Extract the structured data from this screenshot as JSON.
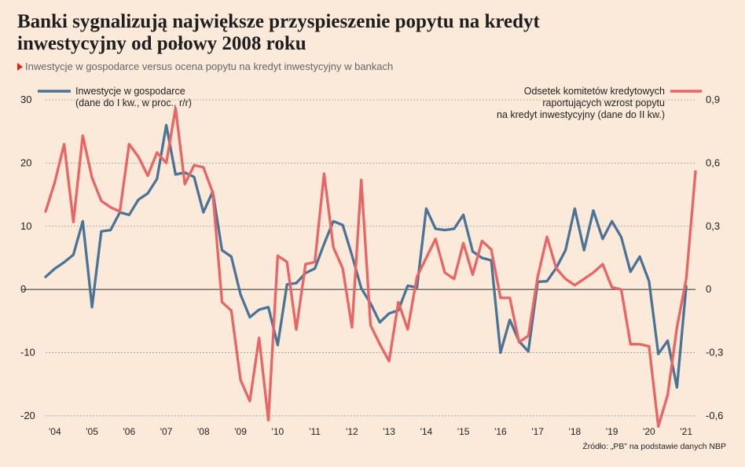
{
  "header": {
    "title": "Banki sygnalizują największe przyspieszenie popytu na kredyt inwestycyjny od połowy 2008 roku",
    "subtitle": "Inwestycje w gospodarce versus ocena popytu na kredyt inwestycyjny  w bankach"
  },
  "footer": {
    "source": "Źródło: „PB” na podstawie danych NBP"
  },
  "colors": {
    "investment": "#4b7396",
    "credit": "#ea6464",
    "zero_line": "#444444",
    "grid": "#9a9a9a"
  },
  "chart_data": {
    "type": "line",
    "x_tick_labels": [
      "'04",
      "'05",
      "'06",
      "'07",
      "'08",
      "'09",
      "'10",
      "'11",
      "'12",
      "'13",
      "'14",
      "'15",
      "'16",
      "'17",
      "'18",
      "'19",
      "'20",
      "'21"
    ],
    "x_range": [
      2003.875,
      2021.375
    ],
    "left_axis": {
      "ticks": [
        "-20",
        "-10",
        "0",
        "10",
        "20",
        "30"
      ],
      "range": [
        -21,
        30
      ]
    },
    "right_axis": {
      "ticks": [
        "-0,6",
        "-0,3",
        "0",
        "0,3",
        "0,6",
        "0,9"
      ],
      "range": [
        -0.63,
        0.9
      ]
    },
    "grid": "dashed horizontal",
    "series": [
      {
        "name": "Inwestycje w gospodarce (dane do I kw., w proc., r/r)",
        "legend_lines": [
          "Inwestycje w gospodarce",
          "(dane do I kw., w proc., r/r)"
        ],
        "axis": "left",
        "x": [
          2003.875,
          2004.125,
          2004.375,
          2004.625,
          2004.875,
          2005.125,
          2005.375,
          2005.625,
          2005.875,
          2006.125,
          2006.375,
          2006.625,
          2006.875,
          2007.125,
          2007.375,
          2007.625,
          2007.875,
          2008.125,
          2008.375,
          2008.625,
          2008.875,
          2009.125,
          2009.375,
          2009.625,
          2009.875,
          2010.125,
          2010.375,
          2010.625,
          2010.875,
          2011.125,
          2011.375,
          2011.625,
          2011.875,
          2012.125,
          2012.375,
          2012.625,
          2012.875,
          2013.125,
          2013.375,
          2013.625,
          2013.875,
          2014.125,
          2014.375,
          2014.625,
          2014.875,
          2015.125,
          2015.375,
          2015.625,
          2015.875,
          2016.125,
          2016.375,
          2016.625,
          2016.875,
          2017.125,
          2017.375,
          2017.625,
          2017.875,
          2018.125,
          2018.375,
          2018.625,
          2018.875,
          2019.125,
          2019.375,
          2019.625,
          2019.875,
          2020.125,
          2020.375,
          2020.625,
          2020.875,
          2021.125
        ],
        "y": [
          2,
          3.3,
          4.3,
          5.5,
          10.8,
          -2.8,
          9.2,
          9.4,
          12.2,
          11.8,
          14.2,
          15.2,
          17.5,
          26,
          18.2,
          18.5,
          17.8,
          12.2,
          15.5,
          6.2,
          5.2,
          -0.8,
          -4.4,
          -3.2,
          -2.8,
          -8.8,
          0.8,
          1,
          2.6,
          3.3,
          7.2,
          10.8,
          10.2,
          5.4,
          0.2,
          -2.2,
          -5.2,
          -3.8,
          -3.3,
          0.6,
          0.3,
          12.8,
          9.6,
          9.4,
          9.6,
          11.8,
          6,
          5,
          4.6,
          -10,
          -4.8,
          -8.2,
          -9.8,
          1.2,
          1.3,
          3.4,
          6.2,
          12.8,
          6.2,
          12.5,
          8,
          10.8,
          8.3,
          2.8,
          5.2,
          1.3,
          -10.2,
          -8.1,
          -15.5,
          0.5
        ]
      },
      {
        "name": "Odsetek komitetów kredytowych raportujących wzrost popytu na kredyt inwestycyjny (dane do II kw.)",
        "legend_lines": [
          "Odsetek komitetów kredytowych",
          "raportujących wzrost popytu",
          "na kredyt inwestycyjny (dane do II kw.)"
        ],
        "axis": "right",
        "x": [
          2003.875,
          2004.125,
          2004.375,
          2004.625,
          2004.875,
          2005.125,
          2005.375,
          2005.625,
          2005.875,
          2006.125,
          2006.375,
          2006.625,
          2006.875,
          2007.125,
          2007.375,
          2007.625,
          2007.875,
          2008.125,
          2008.375,
          2008.625,
          2008.875,
          2009.125,
          2009.375,
          2009.625,
          2009.875,
          2010.125,
          2010.375,
          2010.625,
          2010.875,
          2011.125,
          2011.375,
          2011.625,
          2011.875,
          2012.125,
          2012.375,
          2012.625,
          2012.875,
          2013.125,
          2013.375,
          2013.625,
          2013.875,
          2014.125,
          2014.375,
          2014.625,
          2014.875,
          2015.125,
          2015.375,
          2015.625,
          2015.875,
          2016.125,
          2016.375,
          2016.625,
          2016.875,
          2017.125,
          2017.375,
          2017.625,
          2017.875,
          2018.125,
          2018.375,
          2018.625,
          2018.875,
          2019.125,
          2019.375,
          2019.625,
          2019.875,
          2020.125,
          2020.375,
          2020.625,
          2020.875,
          2021.125,
          2021.375
        ],
        "y": [
          0.37,
          0.51,
          0.69,
          0.32,
          0.73,
          0.53,
          0.42,
          0.39,
          0.37,
          0.69,
          0.63,
          0.54,
          0.65,
          0.6,
          0.86,
          0.5,
          0.59,
          0.58,
          0.46,
          -0.06,
          -0.1,
          -0.43,
          -0.53,
          -0.23,
          -0.62,
          0.16,
          0.13,
          -0.19,
          0.12,
          0.13,
          0.55,
          0.2,
          0.1,
          -0.18,
          0.52,
          -0.17,
          -0.26,
          -0.34,
          -0.06,
          -0.19,
          0.06,
          0.15,
          0.24,
          0.08,
          0.05,
          0.22,
          0.07,
          0.23,
          0.19,
          -0.04,
          -0.04,
          -0.25,
          -0.22,
          0.06,
          0.25,
          0.1,
          0.05,
          0.02,
          0.05,
          0.08,
          0.12,
          0.01,
          0,
          -0.26,
          -0.26,
          -0.27,
          -0.65,
          -0.5,
          -0.18,
          0.05,
          0.56
        ]
      }
    ]
  }
}
